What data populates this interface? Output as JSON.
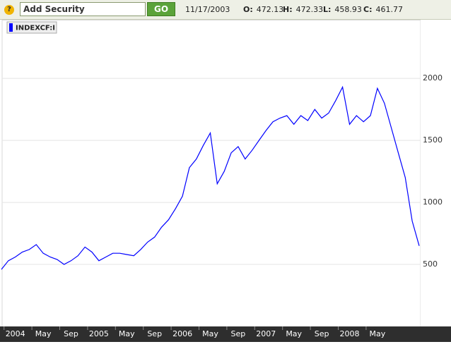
{
  "toolbar": {
    "help": "?",
    "input": "Add Security",
    "button": "GO",
    "date": "11/17/2003",
    "quotes": [
      {
        "label": "O:",
        "value": 472.13
      },
      {
        "label": "H:",
        "value": 472.33
      },
      {
        "label": "L:",
        "value": 458.93
      },
      {
        "label": "C:",
        "value": 461.77
      }
    ]
  },
  "chart_data": {
    "type": "line",
    "x": [
      "2003-11",
      "2003-12",
      "2004-01",
      "2004-02",
      "2004-03",
      "2004-04",
      "2004-05",
      "2004-06",
      "2004-07",
      "2004-08",
      "2004-09",
      "2004-10",
      "2004-11",
      "2004-12",
      "2005-01",
      "2005-02",
      "2005-03",
      "2005-04",
      "2005-05",
      "2005-06",
      "2005-07",
      "2005-08",
      "2005-09",
      "2005-10",
      "2005-11",
      "2005-12",
      "2006-01",
      "2006-02",
      "2006-03",
      "2006-04",
      "2006-05",
      "2006-06",
      "2006-07",
      "2006-08",
      "2006-09",
      "2006-10",
      "2006-11",
      "2006-12",
      "2007-01",
      "2007-02",
      "2007-03",
      "2007-04",
      "2007-05",
      "2007-06",
      "2007-07",
      "2007-08",
      "2007-09",
      "2007-10",
      "2007-11",
      "2007-12",
      "2008-01",
      "2008-02",
      "2008-03",
      "2008-04",
      "2008-05",
      "2008-06",
      "2008-07",
      "2008-08",
      "2008-09",
      "2008-10",
      "2008-11"
    ],
    "series": [
      {
        "name": "INDEXCF:I",
        "color": "#0000ff",
        "values": [
          460,
          530,
          560,
          600,
          620,
          660,
          590,
          560,
          540,
          500,
          530,
          570,
          640,
          600,
          530,
          560,
          590,
          590,
          580,
          570,
          620,
          680,
          720,
          800,
          860,
          950,
          1050,
          1280,
          1350,
          1460,
          1560,
          1150,
          1250,
          1400,
          1450,
          1350,
          1420,
          1500,
          1580,
          1650,
          1680,
          1700,
          1630,
          1700,
          1660,
          1750,
          1680,
          1720,
          1820,
          1930,
          1630,
          1700,
          1650,
          1700,
          1920,
          1800,
          1600,
          1400,
          1200,
          850,
          650
        ]
      }
    ],
    "ylim": [
      0,
      2470
    ],
    "yticks": [
      500,
      1000,
      1500,
      2000
    ],
    "xticks": [
      {
        "value": "2004-01",
        "label": "2004"
      },
      {
        "value": "2004-05",
        "label": "May"
      },
      {
        "value": "2004-09",
        "label": "Sep"
      },
      {
        "value": "2005-01",
        "label": "2005"
      },
      {
        "value": "2005-05",
        "label": "May"
      },
      {
        "value": "2005-09",
        "label": "Sep"
      },
      {
        "value": "2006-01",
        "label": "2006"
      },
      {
        "value": "2006-05",
        "label": "May"
      },
      {
        "value": "2006-09",
        "label": "Sep"
      },
      {
        "value": "2007-01",
        "label": "2007"
      },
      {
        "value": "2007-05",
        "label": "May"
      },
      {
        "value": "2007-09",
        "label": "Sep"
      },
      {
        "value": "2008-01",
        "label": "2008"
      },
      {
        "value": "2008-05",
        "label": "May"
      }
    ],
    "grid": true
  }
}
